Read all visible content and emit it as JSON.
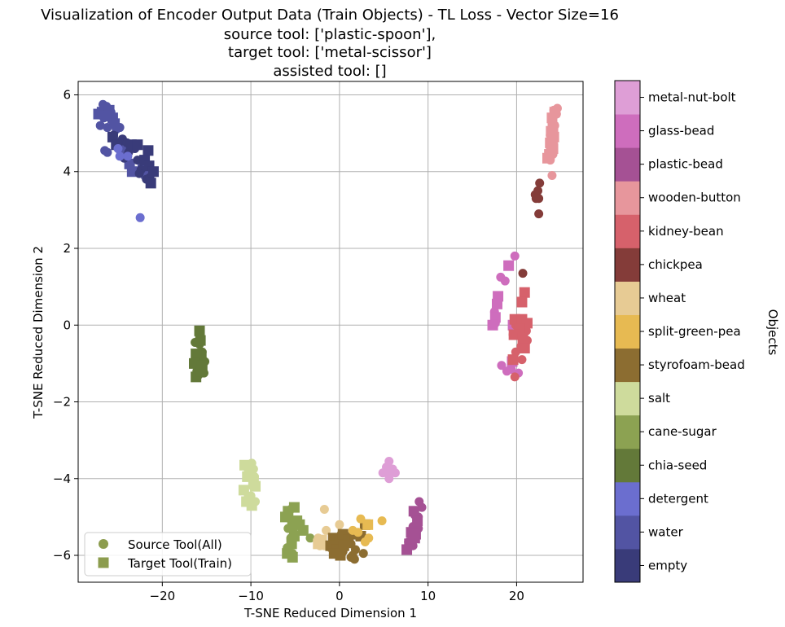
{
  "chart_data": {
    "type": "scatter",
    "title_lines": [
      "Visualization of Encoder Output Data (Train Objects) - TL Loss - Vector Size=16",
      "source tool: ['plastic-spoon'],",
      "target tool: ['metal-scissor']",
      "assisted tool: []"
    ],
    "xlabel": "T-SNE Reduced Dimension 1",
    "ylabel": "T-SNE Reduced Dimension 2",
    "xlim": [
      -29.5,
      27.5
    ],
    "ylim": [
      -6.7,
      6.35
    ],
    "xticks": [
      -20,
      -10,
      0,
      10,
      20
    ],
    "xtick_labels": [
      "−20",
      "−10",
      "0",
      "10",
      "20"
    ],
    "yticks": [
      -6,
      -4,
      -2,
      0,
      2,
      4,
      6
    ],
    "ytick_labels": [
      "−6",
      "−4",
      "−2",
      "0",
      "2",
      "4",
      "6"
    ],
    "grid": true,
    "legend": {
      "placement": "lower-left",
      "entries": [
        {
          "label": "Source Tool(All)",
          "marker": "circle"
        },
        {
          "label": "Target Tool(Train)",
          "marker": "square"
        }
      ],
      "color": "#8c9c4e"
    },
    "colorbar": {
      "title": "Objects",
      "categories": [
        {
          "name": "empty",
          "color": "#393b79"
        },
        {
          "name": "water",
          "color": "#5254a3"
        },
        {
          "name": "detergent",
          "color": "#6b6ecf"
        },
        {
          "name": "chia-seed",
          "color": "#637939"
        },
        {
          "name": "cane-sugar",
          "color": "#8ca252"
        },
        {
          "name": "salt",
          "color": "#cedb9c"
        },
        {
          "name": "styrofoam-bead",
          "color": "#8c6d31"
        },
        {
          "name": "split-green-pea",
          "color": "#e7ba52"
        },
        {
          "name": "wheat",
          "color": "#e7cb94"
        },
        {
          "name": "chickpea",
          "color": "#843c39"
        },
        {
          "name": "kidney-bean",
          "color": "#d6616b"
        },
        {
          "name": "wooden-button",
          "color": "#e7969c"
        },
        {
          "name": "plastic-bead",
          "color": "#a55194"
        },
        {
          "name": "glass-bead",
          "color": "#ce6dbd"
        },
        {
          "name": "metal-nut-bolt",
          "color": "#de9ed6"
        }
      ]
    },
    "series": [
      {
        "category": "water",
        "marker": "circle",
        "points": [
          [
            -26.7,
            5.75
          ],
          [
            -26.3,
            5.7
          ],
          [
            -25.8,
            5.55
          ],
          [
            -26.6,
            5.4
          ],
          [
            -25.5,
            5.3
          ],
          [
            -27.0,
            5.2
          ],
          [
            -26.2,
            5.15
          ],
          [
            -25.2,
            5.1
          ],
          [
            -24.8,
            5.15
          ],
          [
            -26.5,
            4.55
          ],
          [
            -26.2,
            4.5
          ]
        ]
      },
      {
        "category": "water",
        "marker": "square",
        "points": [
          [
            -27.2,
            5.5
          ],
          [
            -26.8,
            5.55
          ],
          [
            -26.0,
            5.6
          ],
          [
            -25.6,
            5.4
          ],
          [
            -25.4,
            5.25
          ],
          [
            -26.4,
            5.45
          ],
          [
            -24.6,
            4.6
          ],
          [
            -23.7,
            4.2
          ],
          [
            -22.2,
            4.05
          ],
          [
            -23.4,
            4.0
          ],
          [
            -21.8,
            3.95
          ]
        ]
      },
      {
        "category": "empty",
        "marker": "circle",
        "points": [
          [
            -25.5,
            4.95
          ],
          [
            -24.9,
            4.75
          ],
          [
            -24.5,
            4.85
          ],
          [
            -24.0,
            4.75
          ],
          [
            -23.8,
            4.5
          ],
          [
            -24.3,
            4.35
          ],
          [
            -23.1,
            4.6
          ],
          [
            -22.8,
            4.3
          ],
          [
            -22.4,
            4.05
          ],
          [
            -22.6,
            3.95
          ],
          [
            -21.8,
            3.8
          ],
          [
            -21.4,
            3.85
          ]
        ]
      },
      {
        "category": "empty",
        "marker": "square",
        "points": [
          [
            -25.6,
            4.9
          ],
          [
            -25.2,
            4.7
          ],
          [
            -23.5,
            4.7
          ],
          [
            -22.8,
            4.7
          ],
          [
            -21.6,
            4.55
          ],
          [
            -22.0,
            4.3
          ],
          [
            -21.5,
            4.15
          ],
          [
            -21.0,
            4.0
          ],
          [
            -21.3,
            3.7
          ]
        ]
      },
      {
        "category": "detergent",
        "marker": "circle",
        "points": [
          [
            -25.0,
            4.6
          ],
          [
            -23.9,
            4.4
          ],
          [
            -24.8,
            4.4
          ],
          [
            -22.5,
            2.8
          ]
        ]
      },
      {
        "category": "chia-seed",
        "marker": "circle",
        "points": [
          [
            -16.3,
            -0.45
          ],
          [
            -15.8,
            -0.5
          ],
          [
            -15.5,
            -0.7
          ],
          [
            -15.2,
            -0.95
          ],
          [
            -16.0,
            -1.1
          ],
          [
            -15.3,
            -1.25
          ],
          [
            -15.9,
            -1.3
          ],
          [
            -16.1,
            -1.2
          ]
        ]
      },
      {
        "category": "chia-seed",
        "marker": "square",
        "points": [
          [
            -15.8,
            -0.15
          ],
          [
            -15.7,
            -0.4
          ],
          [
            -15.6,
            -0.8
          ],
          [
            -16.2,
            -0.75
          ],
          [
            -16.4,
            -1.0
          ],
          [
            -15.5,
            -1.05
          ],
          [
            -16.2,
            -1.35
          ],
          [
            -15.6,
            -1.2
          ]
        ]
      },
      {
        "category": "salt",
        "marker": "circle",
        "points": [
          [
            -9.9,
            -3.6
          ],
          [
            -9.7,
            -3.75
          ],
          [
            -9.6,
            -3.95
          ],
          [
            -9.8,
            -4.2
          ],
          [
            -10.0,
            -4.45
          ],
          [
            -9.5,
            -4.6
          ]
        ]
      },
      {
        "category": "salt",
        "marker": "square",
        "points": [
          [
            -10.7,
            -3.65
          ],
          [
            -10.2,
            -3.7
          ],
          [
            -10.4,
            -3.95
          ],
          [
            -9.7,
            -4.05
          ],
          [
            -9.5,
            -4.2
          ],
          [
            -10.8,
            -4.3
          ],
          [
            -10.2,
            -4.5
          ],
          [
            -10.5,
            -4.6
          ],
          [
            -9.9,
            -4.7
          ]
        ]
      },
      {
        "category": "cane-sugar",
        "marker": "circle",
        "points": [
          [
            -5.5,
            -4.8
          ],
          [
            -5.8,
            -5.0
          ],
          [
            -5.3,
            -5.1
          ],
          [
            -5.8,
            -5.3
          ],
          [
            -5.5,
            -5.55
          ],
          [
            -5.9,
            -5.8
          ],
          [
            -5.3,
            -5.95
          ],
          [
            -5.7,
            -5.95
          ],
          [
            -3.3,
            -5.55
          ]
        ]
      },
      {
        "category": "cane-sugar",
        "marker": "square",
        "points": [
          [
            -5.1,
            -4.75
          ],
          [
            -5.8,
            -4.85
          ],
          [
            -6.1,
            -5.0
          ],
          [
            -4.8,
            -5.1
          ],
          [
            -5.3,
            -5.25
          ],
          [
            -4.5,
            -5.2
          ],
          [
            -4.1,
            -5.35
          ],
          [
            -5.1,
            -5.5
          ],
          [
            -5.4,
            -5.7
          ],
          [
            -5.9,
            -5.95
          ],
          [
            -5.3,
            -6.05
          ]
        ]
      },
      {
        "category": "wheat",
        "marker": "circle",
        "points": [
          [
            -1.7,
            -4.8
          ],
          [
            0.0,
            -5.2
          ],
          [
            -1.5,
            -5.35
          ],
          [
            -2.4,
            -5.55
          ],
          [
            -2.0,
            -5.65
          ],
          [
            -1.7,
            -5.75
          ],
          [
            -0.8,
            -5.7
          ],
          [
            -2.2,
            -5.75
          ]
        ]
      },
      {
        "category": "wheat",
        "marker": "square",
        "points": [
          [
            -2.0,
            -5.6
          ],
          [
            -2.4,
            -5.7
          ]
        ]
      },
      {
        "category": "styrofoam-bead",
        "marker": "circle",
        "points": [
          [
            0.2,
            -5.45
          ],
          [
            0.8,
            -5.5
          ],
          [
            -0.5,
            -5.6
          ],
          [
            1.3,
            -5.7
          ],
          [
            0.5,
            -5.75
          ],
          [
            1.8,
            -5.85
          ],
          [
            1.5,
            -6.0
          ],
          [
            2.7,
            -5.95
          ],
          [
            1.3,
            -6.05
          ],
          [
            1.7,
            -6.1
          ],
          [
            0.4,
            -5.9
          ],
          [
            -1.0,
            -5.8
          ]
        ]
      },
      {
        "category": "styrofoam-bead",
        "marker": "square",
        "points": [
          [
            -0.7,
            -5.55
          ],
          [
            0.0,
            -5.65
          ],
          [
            0.4,
            -5.45
          ],
          [
            1.0,
            -5.6
          ],
          [
            1.8,
            -5.45
          ],
          [
            -1.0,
            -5.75
          ],
          [
            -0.3,
            -5.85
          ],
          [
            0.5,
            -5.75
          ],
          [
            2.4,
            -5.5
          ],
          [
            2.9,
            -5.2
          ],
          [
            -0.6,
            -5.95
          ],
          [
            0.1,
            -6.0
          ]
        ]
      },
      {
        "category": "split-green-pea",
        "marker": "circle",
        "points": [
          [
            2.4,
            -5.05
          ],
          [
            4.8,
            -5.1
          ],
          [
            1.5,
            -5.35
          ],
          [
            2.1,
            -5.4
          ],
          [
            3.3,
            -5.55
          ],
          [
            2.9,
            -5.65
          ]
        ]
      },
      {
        "category": "split-green-pea",
        "marker": "square",
        "points": [
          [
            3.2,
            -5.2
          ]
        ]
      },
      {
        "category": "metal-nut-bolt",
        "marker": "circle",
        "points": [
          [
            5.6,
            -3.55
          ],
          [
            5.3,
            -3.7
          ],
          [
            6.0,
            -3.75
          ],
          [
            5.7,
            -3.85
          ],
          [
            4.9,
            -3.85
          ],
          [
            6.3,
            -3.85
          ],
          [
            5.6,
            -4.0
          ]
        ]
      },
      {
        "category": "plastic-bead",
        "marker": "circle",
        "points": [
          [
            9.0,
            -4.6
          ],
          [
            9.3,
            -4.75
          ],
          [
            8.5,
            -4.95
          ],
          [
            8.9,
            -5.0
          ],
          [
            8.3,
            -5.25
          ],
          [
            8.9,
            -5.3
          ],
          [
            8.6,
            -5.55
          ],
          [
            7.8,
            -5.65
          ],
          [
            8.3,
            -5.75
          ],
          [
            8.9,
            -5.3
          ]
        ]
      },
      {
        "category": "plastic-bead",
        "marker": "square",
        "points": [
          [
            8.4,
            -4.85
          ],
          [
            8.8,
            -5.1
          ],
          [
            8.1,
            -5.4
          ],
          [
            8.6,
            -5.45
          ],
          [
            7.9,
            -5.7
          ],
          [
            7.6,
            -5.85
          ],
          [
            8.5,
            -5.55
          ]
        ]
      },
      {
        "category": "glass-bead",
        "marker": "circle",
        "points": [
          [
            19.8,
            1.8
          ],
          [
            18.2,
            1.25
          ],
          [
            18.7,
            1.15
          ],
          [
            17.5,
            0.35
          ],
          [
            17.6,
            0.05
          ],
          [
            18.3,
            -1.05
          ],
          [
            19.4,
            -1.15
          ],
          [
            18.9,
            -1.2
          ],
          [
            20.2,
            -1.25
          ]
        ]
      },
      {
        "category": "glass-bead",
        "marker": "square",
        "points": [
          [
            19.1,
            1.55
          ],
          [
            17.9,
            0.75
          ],
          [
            17.8,
            0.55
          ],
          [
            17.6,
            0.2
          ],
          [
            17.3,
            0.0
          ],
          [
            19.6,
            0.0
          ],
          [
            19.5,
            -0.95
          ]
        ]
      },
      {
        "category": "kidney-bean",
        "marker": "circle",
        "points": [
          [
            19.9,
            0.0
          ],
          [
            21.1,
            -0.15
          ],
          [
            20.6,
            -0.35
          ],
          [
            19.6,
            -0.25
          ],
          [
            21.2,
            -0.4
          ],
          [
            20.5,
            -0.55
          ],
          [
            19.9,
            -0.7
          ],
          [
            20.6,
            -0.9
          ],
          [
            19.8,
            -1.35
          ]
        ]
      },
      {
        "category": "kidney-bean",
        "marker": "square",
        "points": [
          [
            20.9,
            0.85
          ],
          [
            20.6,
            0.6
          ],
          [
            19.8,
            0.15
          ],
          [
            20.6,
            0.15
          ],
          [
            21.2,
            0.05
          ],
          [
            20.3,
            -0.1
          ],
          [
            19.7,
            -0.25
          ],
          [
            20.7,
            -0.35
          ],
          [
            19.6,
            -0.9
          ],
          [
            20.9,
            -0.6
          ]
        ]
      },
      {
        "category": "chickpea",
        "marker": "circle",
        "points": [
          [
            20.7,
            1.35
          ],
          [
            22.6,
            3.7
          ],
          [
            22.4,
            3.5
          ],
          [
            22.1,
            3.4
          ],
          [
            22.5,
            3.3
          ],
          [
            22.2,
            3.3
          ],
          [
            22.5,
            2.9
          ]
        ]
      },
      {
        "category": "wooden-button",
        "marker": "circle",
        "points": [
          [
            24.6,
            5.65
          ],
          [
            24.2,
            5.6
          ],
          [
            24.5,
            5.5
          ],
          [
            24.0,
            5.35
          ],
          [
            24.3,
            5.2
          ],
          [
            23.8,
            4.95
          ],
          [
            24.2,
            4.8
          ],
          [
            23.9,
            4.6
          ],
          [
            24.1,
            4.45
          ],
          [
            23.8,
            4.3
          ],
          [
            24.0,
            3.9
          ]
        ]
      },
      {
        "category": "wooden-button",
        "marker": "square",
        "points": [
          [
            24.3,
            5.55
          ],
          [
            24.0,
            5.4
          ],
          [
            24.1,
            5.15
          ],
          [
            23.9,
            5.05
          ],
          [
            24.2,
            4.9
          ],
          [
            23.8,
            4.75
          ],
          [
            24.1,
            4.6
          ],
          [
            23.7,
            4.45
          ],
          [
            23.9,
            4.55
          ],
          [
            23.5,
            4.35
          ]
        ]
      }
    ]
  }
}
